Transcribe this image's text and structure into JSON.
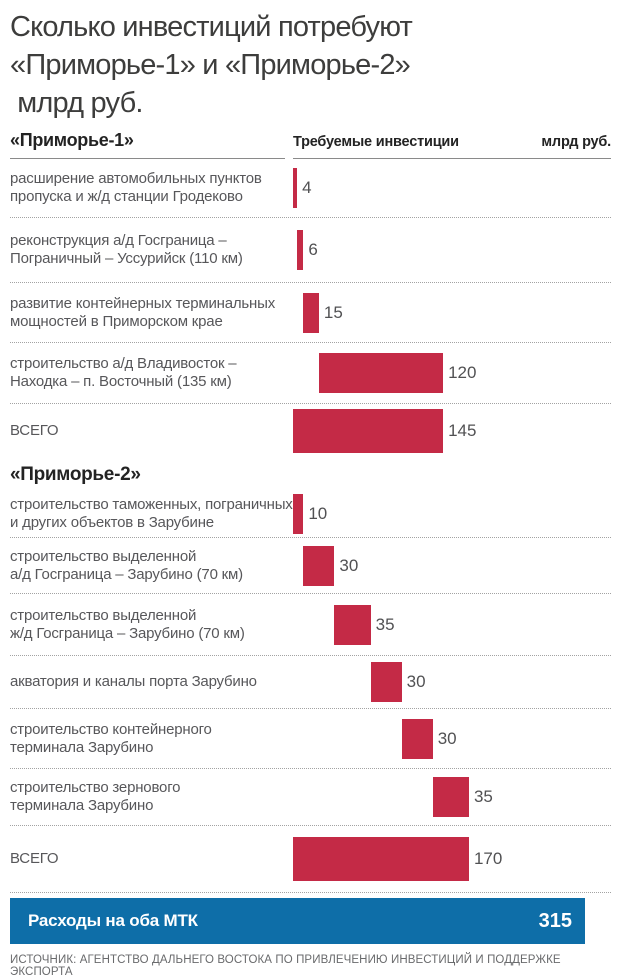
{
  "title": "Сколько инвестиций потребуют\n«Приморье-1» и «Приморье-2»\n млрд руб.",
  "source": "ИСТОЧНИК: АГЕНТСТВО ДАЛЬНЕГО ВОСТОКА ПО ПРИВЛЕЧЕНИЮ ИНВЕСТИЦИЙ И ПОДДЕРЖКЕ ЭКСПОРТА",
  "colors": {
    "bar": "#c42a46",
    "total_bar": "#0e6ea8",
    "label_text": "#57575a",
    "heading_text": "#232323",
    "source_text": "#696a6c"
  },
  "chart_data": {
    "type": "bar",
    "subtype": "horizontal-waterfall",
    "title": "Сколько инвестиций потребуют «Приморье-1» и «Приморье-2» млрд руб.",
    "column_header": "Требуемые инвестиции",
    "unit": "млрд руб.",
    "xlim": [
      0,
      170
    ],
    "grid": false,
    "legend": "none",
    "sections": [
      {
        "name": "«Приморье-1»",
        "total": 145,
        "items": [
          {
            "label": "расширение автомобильных пунктов\nпропуска и ж/д станции Гродеково",
            "value": 4,
            "offset": 0,
            "is_total": false
          },
          {
            "label": "реконструкция а/д Госграница –\nПограничный – Уссурийск (110 км)",
            "value": 6,
            "offset": 4,
            "is_total": false
          },
          {
            "label": "развитие контейнерных терминальных\nмощностей в Приморском крае",
            "value": 15,
            "offset": 10,
            "is_total": false
          },
          {
            "label": "строительство а/д Владивосток –\nНаходка – п. Восточный (135 км)",
            "value": 120,
            "offset": 25,
            "is_total": false
          },
          {
            "label": "ВСЕГО",
            "value": 145,
            "offset": 0,
            "is_total": true
          }
        ]
      },
      {
        "name": "«Приморье-2»",
        "total": 170,
        "items": [
          {
            "label": "строительство таможенных, пограничных\nи других объектов в Зарубине",
            "value": 10,
            "offset": 0,
            "is_total": false
          },
          {
            "label": "строительство выделенной\nа/д Госграница – Зарубино (70 км)",
            "value": 30,
            "offset": 10,
            "is_total": false
          },
          {
            "label": "строительство выделенной\nж/д Госграница – Зарубино (70 км)",
            "value": 35,
            "offset": 40,
            "is_total": false
          },
          {
            "label": "акватория и каналы порта Зарубино",
            "value": 30,
            "offset": 75,
            "is_total": false
          },
          {
            "label": "строительство контейнерного\nтерминала Зарубино",
            "value": 30,
            "offset": 105,
            "is_total": false
          },
          {
            "label": "строительство зернового\nтерминала Зарубино",
            "value": 35,
            "offset": 135,
            "is_total": false
          },
          {
            "label": "ВСЕГО",
            "value": 170,
            "offset": 0,
            "is_total": true
          }
        ]
      }
    ],
    "grand_total": {
      "label": "Расходы на оба МТК",
      "value": 315
    }
  }
}
